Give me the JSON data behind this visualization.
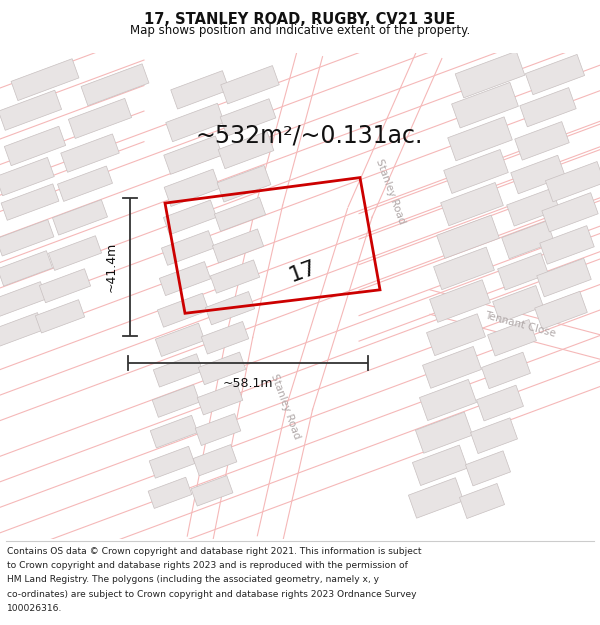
{
  "title_line1": "17, STANLEY ROAD, RUGBY, CV21 3UE",
  "title_line2": "Map shows position and indicative extent of the property.",
  "area_text": "~532m²/~0.131ac.",
  "width_label": "~58.1m",
  "height_label": "~41.4m",
  "property_number": "17",
  "footer_lines": [
    "Contains OS data © Crown copyright and database right 2021. This information is subject",
    "to Crown copyright and database rights 2023 and is reproduced with the permission of",
    "HM Land Registry. The polygons (including the associated geometry, namely x, y",
    "co-ordinates) are subject to Crown copyright and database rights 2023 Ordnance Survey",
    "100026316."
  ],
  "bg_color": "#ffffff",
  "map_bg": "#ffffff",
  "road_line_color": "#f5b8b8",
  "road_line_lw": 0.8,
  "building_face": "#e8e4e4",
  "building_edge": "#c8c0c0",
  "building_edge_lw": 0.5,
  "property_color": "#cc0000",
  "property_lw": 2.0,
  "road_label_color": "#b0a8a8",
  "dim_color": "#333333",
  "text_color": "#111111",
  "road_bg_color": "#f8f0f0"
}
